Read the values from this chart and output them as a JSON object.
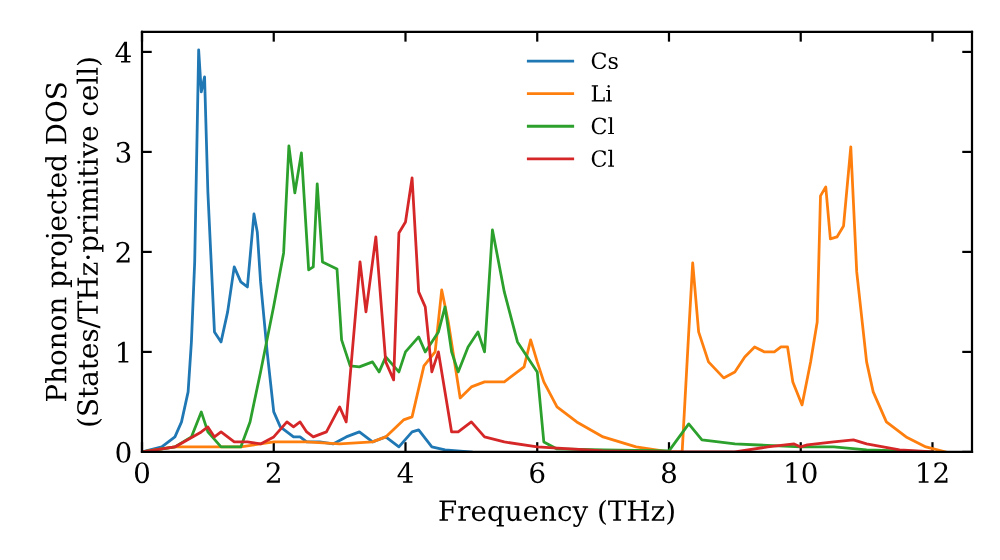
{
  "chart_data": {
    "type": "line",
    "xlabel": "Frequency (THz)",
    "ylabel": "Phonon projected DOS\n(States/THz·primitive cell)",
    "xlim": [
      0,
      12.6
    ],
    "ylim": [
      0,
      4.2
    ],
    "xticks": [
      0,
      2,
      4,
      6,
      8,
      10,
      12
    ],
    "yticks": [
      0,
      1,
      2,
      3,
      4
    ],
    "grid": false,
    "legend": "top",
    "series": [
      {
        "name": "Cs",
        "color": "#1f77b4",
        "x": [
          0,
          0.3,
          0.5,
          0.6,
          0.7,
          0.75,
          0.8,
          0.86,
          0.9,
          0.95,
          1.0,
          1.1,
          1.2,
          1.3,
          1.4,
          1.5,
          1.6,
          1.7,
          1.75,
          1.8,
          1.9,
          2.0,
          2.1,
          2.2,
          2.3,
          2.4,
          2.5,
          2.7,
          2.9,
          3.1,
          3.3,
          3.5,
          3.7,
          3.9,
          4.1,
          4.2,
          4.4,
          4.6,
          5
        ],
        "values": [
          0,
          0.05,
          0.15,
          0.3,
          0.6,
          1.1,
          1.9,
          4.02,
          3.6,
          3.75,
          2.6,
          1.2,
          1.1,
          1.4,
          1.85,
          1.7,
          1.65,
          2.38,
          2.2,
          1.7,
          1.0,
          0.4,
          0.25,
          0.2,
          0.15,
          0.15,
          0.1,
          0.1,
          0.08,
          0.15,
          0.2,
          0.1,
          0.15,
          0.05,
          0.2,
          0.22,
          0.05,
          0.02,
          0
        ]
      },
      {
        "name": "Li",
        "color": "#ff7f0e",
        "x": [
          0,
          0.5,
          1.0,
          1.5,
          2.0,
          2.5,
          3.0,
          3.5,
          3.7,
          3.97,
          4.1,
          4.28,
          4.45,
          4.55,
          4.65,
          4.83,
          5.0,
          5.2,
          5.5,
          5.8,
          5.9,
          6.0,
          6.1,
          6.3,
          6.6,
          7.0,
          7.5,
          8.0,
          8.2,
          8.3,
          8.36,
          8.45,
          8.6,
          8.83,
          9.0,
          9.15,
          9.3,
          9.45,
          9.6,
          9.7,
          9.8,
          9.88,
          10.02,
          10.15,
          10.25,
          10.3,
          10.38,
          10.45,
          10.55,
          10.65,
          10.76,
          10.85,
          11.0,
          11.1,
          11.3,
          11.6,
          11.9,
          12.2
        ],
        "values": [
          0,
          0.05,
          0.05,
          0.05,
          0.1,
          0.1,
          0.08,
          0.1,
          0.15,
          0.32,
          0.35,
          0.86,
          1.0,
          1.62,
          1.3,
          0.54,
          0.65,
          0.7,
          0.7,
          0.85,
          1.12,
          0.9,
          0.7,
          0.45,
          0.3,
          0.15,
          0.05,
          0,
          0,
          1.2,
          1.89,
          1.2,
          0.9,
          0.74,
          0.8,
          0.95,
          1.05,
          1.0,
          1.0,
          1.05,
          1.05,
          0.7,
          0.47,
          0.9,
          1.3,
          2.56,
          2.65,
          2.13,
          2.15,
          2.26,
          3.05,
          1.8,
          0.9,
          0.6,
          0.3,
          0.15,
          0.05,
          0
        ]
      },
      {
        "name": "Cl",
        "color": "#2ca02c",
        "x": [
          0,
          0.5,
          0.75,
          0.9,
          1.0,
          1.2,
          1.5,
          1.64,
          1.8,
          2.0,
          2.15,
          2.23,
          2.32,
          2.42,
          2.53,
          2.6,
          2.66,
          2.74,
          2.96,
          3.03,
          3.16,
          3.3,
          3.5,
          3.6,
          3.7,
          3.9,
          4.0,
          4.2,
          4.3,
          4.5,
          4.6,
          4.7,
          4.8,
          4.95,
          5.1,
          5.2,
          5.32,
          5.5,
          5.7,
          5.9,
          6.0,
          6.1,
          6.3,
          7,
          8,
          8.1,
          8.3,
          8.5,
          9,
          10,
          10.5,
          11,
          12
        ],
        "values": [
          0,
          0.05,
          0.15,
          0.4,
          0.2,
          0.05,
          0.05,
          0.3,
          0.8,
          1.46,
          1.99,
          3.06,
          2.59,
          2.99,
          1.82,
          1.85,
          2.68,
          1.9,
          1.83,
          1.12,
          0.86,
          0.85,
          0.9,
          0.8,
          0.95,
          0.8,
          1.0,
          1.15,
          1.0,
          1.2,
          1.45,
          1.0,
          0.8,
          1.05,
          1.2,
          1.0,
          2.22,
          1.6,
          1.1,
          0.9,
          0.8,
          0.1,
          0.03,
          0.02,
          0.01,
          0.1,
          0.28,
          0.12,
          0.08,
          0.05,
          0.05,
          0.02,
          0
        ]
      },
      {
        "name": "Cl",
        "color": "#d62728",
        "x": [
          0,
          0.5,
          0.9,
          1.0,
          1.1,
          1.2,
          1.4,
          1.6,
          1.8,
          2.0,
          2.2,
          2.3,
          2.4,
          2.5,
          2.6,
          2.8,
          3.0,
          3.1,
          3.31,
          3.4,
          3.55,
          3.7,
          3.82,
          3.9,
          4.0,
          4.1,
          4.2,
          4.3,
          4.4,
          4.5,
          4.6,
          4.7,
          4.8,
          5.0,
          5.2,
          5.5,
          6.0,
          7,
          8,
          9,
          9.5,
          9.9,
          10.0,
          10.1,
          10.5,
          10.8,
          11,
          11.5,
          12
        ],
        "values": [
          0,
          0.05,
          0.2,
          0.25,
          0.15,
          0.2,
          0.1,
          0.1,
          0.08,
          0.15,
          0.3,
          0.25,
          0.3,
          0.2,
          0.15,
          0.2,
          0.45,
          0.3,
          1.9,
          1.4,
          2.15,
          0.9,
          0.72,
          2.19,
          2.3,
          2.74,
          1.6,
          1.45,
          0.8,
          1.0,
          0.6,
          0.2,
          0.2,
          0.3,
          0.15,
          0.1,
          0.05,
          0.01,
          0,
          0,
          0.05,
          0.08,
          0.05,
          0.07,
          0.1,
          0.12,
          0.08,
          0.02,
          0
        ]
      }
    ]
  }
}
